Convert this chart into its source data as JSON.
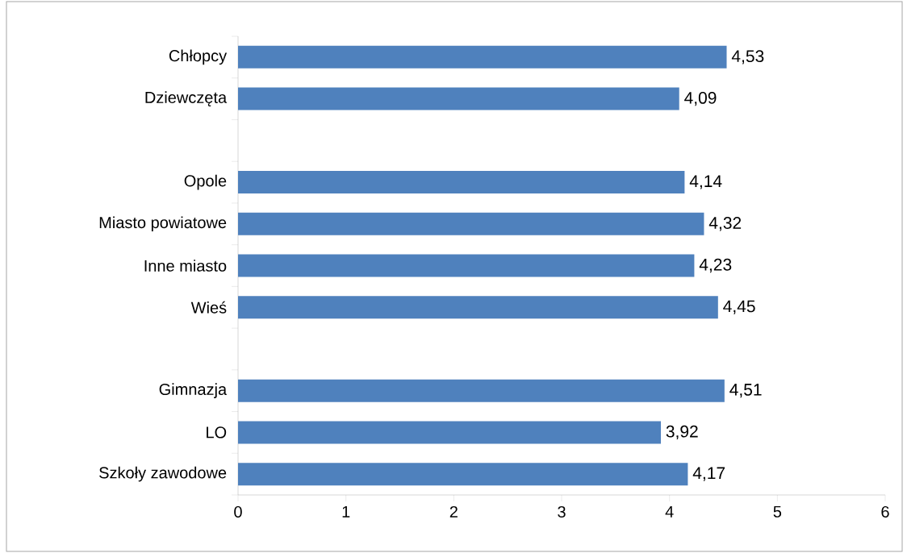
{
  "chart_data": {
    "type": "bar",
    "orientation": "horizontal",
    "categories": [
      "Chłopcy",
      "Dziewczęta",
      null,
      "Opole",
      "Miasto powiatowe",
      "Inne miasto",
      "Wieś",
      null,
      "Gimnazja",
      "LO",
      "Szkoły zawodowe"
    ],
    "values": [
      4.53,
      4.09,
      null,
      4.14,
      4.32,
      4.23,
      4.45,
      null,
      4.51,
      3.92,
      4.17
    ],
    "value_labels": [
      "4,53",
      "4,09",
      null,
      "4,14",
      "4,32",
      "4,23",
      "4,45",
      null,
      "4,51",
      "3,92",
      "4,17"
    ],
    "color": "#4f81bd",
    "xlim": [
      0,
      6
    ],
    "xticks": [
      0,
      1,
      2,
      3,
      4,
      5,
      6
    ],
    "grid": false
  }
}
